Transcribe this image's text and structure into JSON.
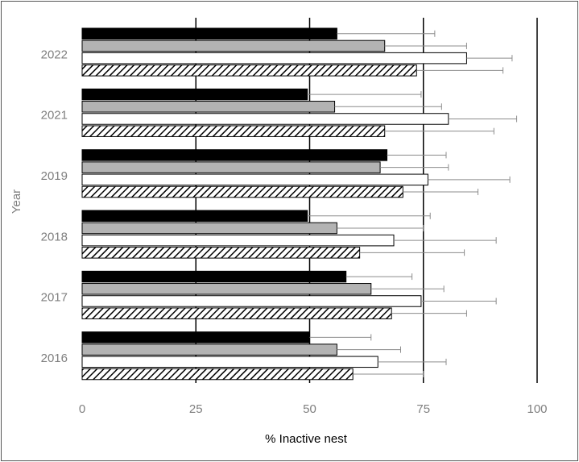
{
  "chart_data": {
    "type": "bar",
    "orientation": "horizontal",
    "categories": [
      "2022",
      "2021",
      "2019",
      "2018",
      "2017",
      "2016"
    ],
    "series": [
      {
        "style": "black",
        "values": [
          56,
          49.5,
          67,
          49.5,
          58,
          50
        ],
        "errors": [
          21.5,
          25,
          13,
          27,
          14.5,
          13.5
        ]
      },
      {
        "style": "gray",
        "values": [
          66.5,
          55.5,
          65.5,
          56,
          63.5,
          56
        ],
        "errors": [
          18,
          23.5,
          15,
          19,
          16,
          14
        ]
      },
      {
        "style": "white",
        "values": [
          84.5,
          80.5,
          76,
          68.5,
          74.5,
          65
        ],
        "errors": [
          10,
          15,
          18,
          22.5,
          16.5,
          15
        ]
      },
      {
        "style": "hatched",
        "values": [
          73.5,
          66.5,
          70.5,
          61,
          68,
          59.5
        ],
        "errors": [
          19,
          24,
          16.5,
          23,
          16.5,
          15.5
        ]
      }
    ],
    "xlabel": "% Inactive nest",
    "ylabel": "Year",
    "xlim": [
      0,
      100
    ],
    "xticks": [
      "0",
      "25",
      "50",
      "75",
      "100"
    ],
    "grid": "vertical",
    "legend": "none"
  },
  "colors": {
    "black": "#000000",
    "gray": "#b3b3b3",
    "white": "#ffffff",
    "hatch": "#000000",
    "gridline": "#000000",
    "tick": "#7f7f7f",
    "errorbar": "#8c8c8c"
  }
}
